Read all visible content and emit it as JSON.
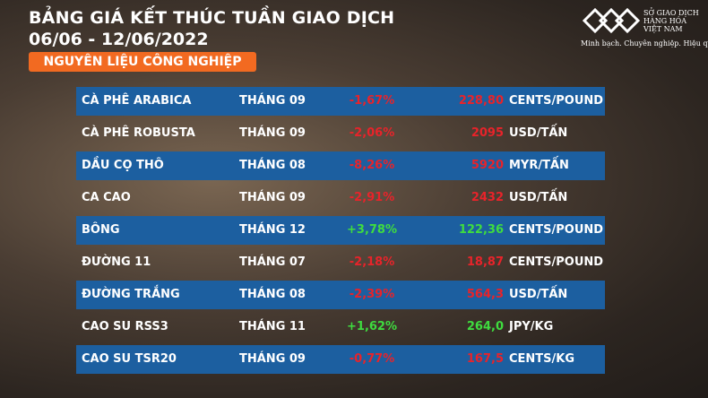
{
  "header": {
    "title": "BẢNG GIÁ KẾT THÚC TUẦN GIAO DỊCH",
    "dates": "06/06 - 12/06/2022",
    "category": "NGUYÊN LIỆU CÔNG NGHIỆP"
  },
  "logo": {
    "lines": [
      "SỞ GIAO DỊCH",
      "HÀNG HÓA",
      "VIỆT NAM"
    ],
    "tagline": "Minh bạch. Chuyên nghiệp. Hiệu quả"
  },
  "table": {
    "rows": [
      [
        "CÀ PHÊ ARABICA",
        "THÁNG 09",
        "-1,67%",
        "228,80",
        "CENTS/POUND"
      ],
      [
        "CÀ PHÊ ROBUSTA",
        "THÁNG 09",
        "-2,06%",
        "2095",
        "USD/TẤN"
      ],
      [
        "DẦU CỌ THÔ",
        "THÁNG 08",
        "-8,26%",
        "5920",
        "MYR/TẤN"
      ],
      [
        "CA CAO",
        "THÁNG 09",
        "-2,91%",
        "2432",
        "USD/TẤN"
      ],
      [
        "BÔNG",
        "THÁNG 12",
        "+3,78%",
        "122,36",
        "CENTS/POUND"
      ],
      [
        "ĐƯỜNG 11",
        "THÁNG 07",
        "-2,18%",
        "18,87",
        "CENTS/POUND"
      ],
      [
        "ĐƯỜNG TRẮNG",
        "THÁNG 08",
        "-2,39%",
        "564,3",
        "USD/TẤN"
      ],
      [
        "CAO SU RSS3",
        "THÁNG 11",
        "+1,62%",
        "264,0",
        "JPY/KG"
      ],
      [
        "CAO SU TSR20",
        "THÁNG 09",
        "-0,77%",
        "167,5",
        "CENTS/KG"
      ]
    ]
  }
}
